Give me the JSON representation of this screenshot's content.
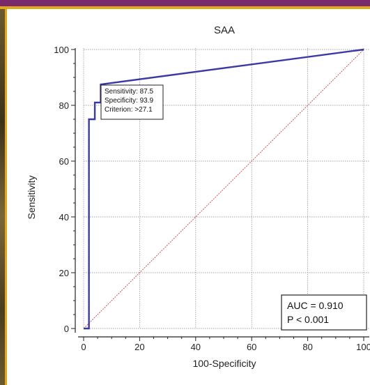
{
  "chart_data": {
    "type": "line",
    "title": "SAA",
    "xlabel": "100-Specificity",
    "ylabel": "Sensitivity",
    "xlim": [
      0,
      100
    ],
    "ylim": [
      0,
      100
    ],
    "x_ticks": [
      "0",
      "20",
      "40",
      "60",
      "80",
      "100"
    ],
    "y_ticks": [
      "0",
      "20",
      "40",
      "60",
      "80",
      "100"
    ],
    "grid": true,
    "series": [
      {
        "name": "",
        "color": "#3a3aa0",
        "points": [
          [
            0,
            0
          ],
          [
            1.9,
            0
          ],
          [
            1.9,
            75
          ],
          [
            4,
            75
          ],
          [
            4,
            81
          ],
          [
            6.1,
            81
          ],
          [
            6.1,
            87.5
          ],
          [
            100,
            100
          ]
        ]
      }
    ],
    "reference_line": {
      "color": "#d04040",
      "points": [
        [
          0,
          0
        ],
        [
          100,
          100
        ]
      ]
    },
    "tooltip": {
      "x": 6.1,
      "y": 87.5,
      "lines": [
        "Sensitivity: 87.5",
        "Specificity: 93.9",
        "Criterion: >27.1"
      ]
    },
    "annotation": {
      "lines": [
        "AUC = 0.910",
        "P < 0.001"
      ]
    }
  }
}
